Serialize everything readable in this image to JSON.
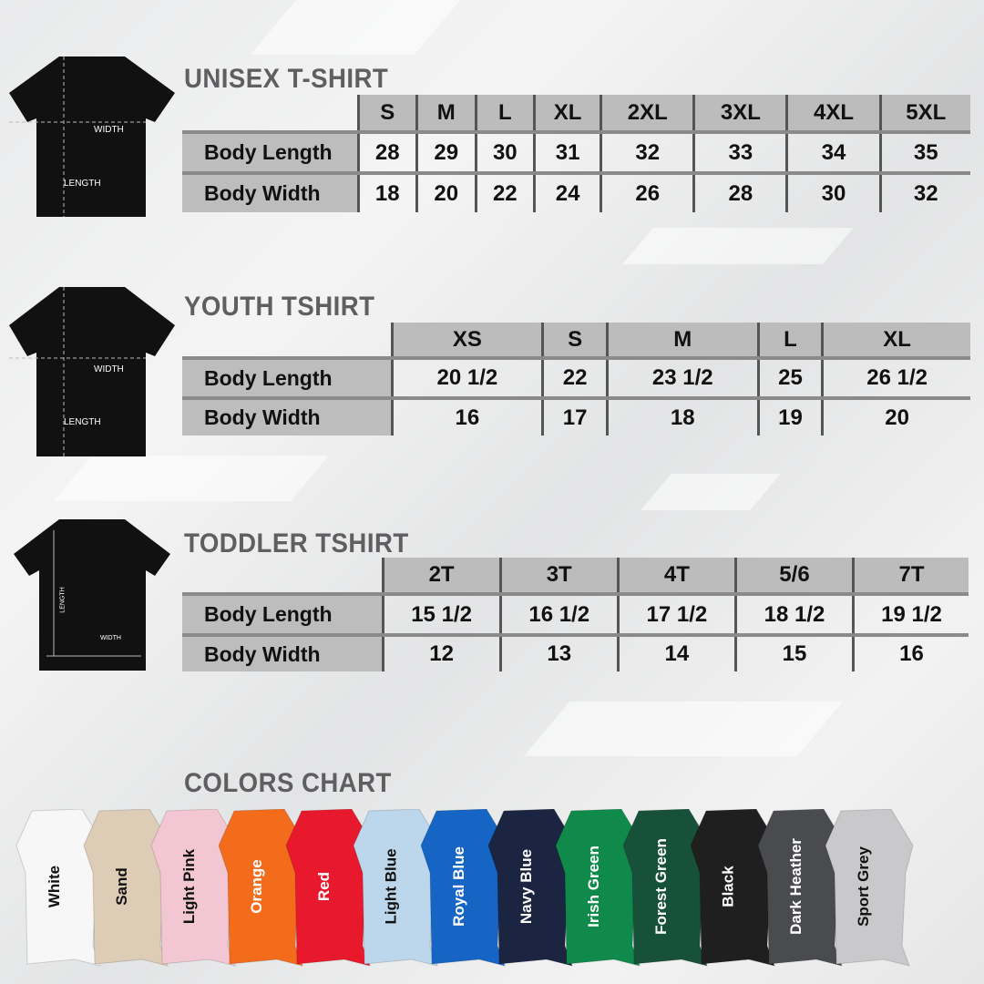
{
  "sections": [
    {
      "title": "UNISEX T-SHIRT",
      "sizes": [
        "S",
        "M",
        "L",
        "XL",
        "2XL",
        "3XL",
        "4XL",
        "5XL"
      ],
      "rows": [
        {
          "label": "Body Length",
          "values": [
            "28",
            "29",
            "30",
            "31",
            "32",
            "33",
            "34",
            "35"
          ]
        },
        {
          "label": "Body Width",
          "values": [
            "18",
            "20",
            "22",
            "24",
            "26",
            "28",
            "30",
            "32"
          ]
        }
      ],
      "diagram": {
        "width_label": "WIDTH",
        "length_label": "LENGTH"
      }
    },
    {
      "title": "YOUTH TSHIRT",
      "sizes": [
        "XS",
        "S",
        "M",
        "L",
        "XL"
      ],
      "rows": [
        {
          "label": "Body Length",
          "values": [
            "20 1/2",
            "22",
            "23 1/2",
            "25",
            "26 1/2"
          ]
        },
        {
          "label": "Body Width",
          "values": [
            "16",
            "17",
            "18",
            "19",
            "20"
          ]
        }
      ],
      "diagram": {
        "width_label": "WIDTH",
        "length_label": "LENGTH"
      }
    },
    {
      "title": "TODDLER TSHIRT",
      "sizes": [
        "2T",
        "3T",
        "4T",
        "5/6",
        "7T"
      ],
      "rows": [
        {
          "label": "Body Length",
          "values": [
            "15 1/2",
            "16 1/2",
            "17 1/2",
            "18 1/2",
            "19 1/2"
          ]
        },
        {
          "label": "Body Width",
          "values": [
            "12",
            "13",
            "14",
            "15",
            "16"
          ]
        }
      ],
      "diagram": {
        "width_label": "WIDTH",
        "length_label": "LENGTH"
      }
    }
  ],
  "colors": {
    "title": "COLORS CHART",
    "items": [
      {
        "name": "White",
        "hex": "#f7f7f7",
        "text": "#111"
      },
      {
        "name": "Sand",
        "hex": "#ddccb6",
        "text": "#111"
      },
      {
        "name": "Light Pink",
        "hex": "#f3c6d3",
        "text": "#111"
      },
      {
        "name": "Orange",
        "hex": "#f26c1c",
        "text": "#fff"
      },
      {
        "name": "Red",
        "hex": "#e8192c",
        "text": "#fff"
      },
      {
        "name": "Light Blue",
        "hex": "#bcd6ec",
        "text": "#111"
      },
      {
        "name": "Royal Blue",
        "hex": "#1664c4",
        "text": "#fff"
      },
      {
        "name": "Navy Blue",
        "hex": "#1b2440",
        "text": "#fff"
      },
      {
        "name": "Irish Green",
        "hex": "#0f8a4a",
        "text": "#fff"
      },
      {
        "name": "Forest Green",
        "hex": "#17513a",
        "text": "#fff"
      },
      {
        "name": "Black",
        "hex": "#1f1f1f",
        "text": "#fff"
      },
      {
        "name": "Dark Heather",
        "hex": "#4a4b4f",
        "text": "#fff"
      },
      {
        "name": "Sport Grey",
        "hex": "#c9c9cb",
        "text": "#111"
      }
    ]
  }
}
